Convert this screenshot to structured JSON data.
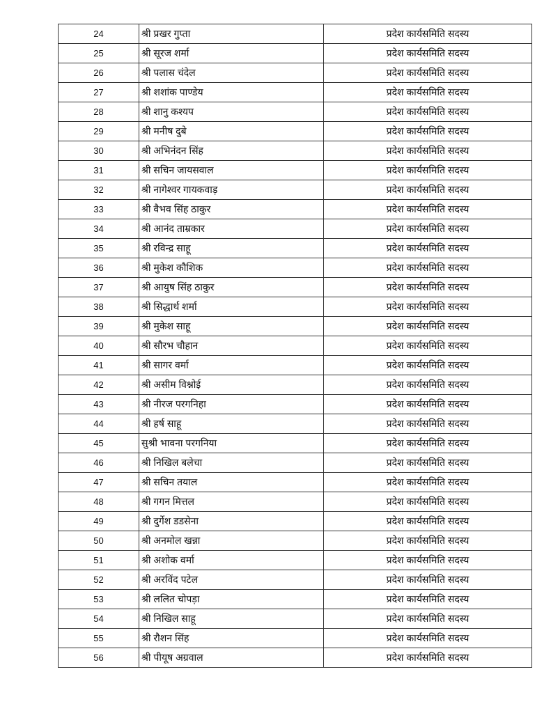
{
  "table": {
    "rows": [
      {
        "sno": "24",
        "name": "श्री प्रखर गुप्ता",
        "designation": "प्रदेश कार्यसमिति सदस्य"
      },
      {
        "sno": "25",
        "name": "श्री सूरज शर्मा",
        "designation": "प्रदेश कार्यसमिति सदस्य"
      },
      {
        "sno": "26",
        "name": "श्री पलास चंदेल",
        "designation": "प्रदेश कार्यसमिति सदस्य"
      },
      {
        "sno": "27",
        "name": "श्री शशांक पाण्डेय",
        "designation": "प्रदेश कार्यसमिति सदस्य"
      },
      {
        "sno": "28",
        "name": "श्री शानु कश्यप",
        "designation": "प्रदेश कार्यसमिति सदस्य"
      },
      {
        "sno": "29",
        "name": "श्री मनीष दुबे",
        "designation": "प्रदेश कार्यसमिति सदस्य"
      },
      {
        "sno": "30",
        "name": "श्री अभिनंदन सिंह",
        "designation": "प्रदेश कार्यसमिति सदस्य"
      },
      {
        "sno": "31",
        "name": "श्री सचिन जायसवाल",
        "designation": "प्रदेश कार्यसमिति सदस्य"
      },
      {
        "sno": "32",
        "name": "श्री नागेश्वर गायकवाड़",
        "designation": "प्रदेश कार्यसमिति सदस्य"
      },
      {
        "sno": "33",
        "name": "श्री वैभव सिंह ठाकुर",
        "designation": "प्रदेश कार्यसमिति सदस्य"
      },
      {
        "sno": "34",
        "name": "श्री आनंद ताम्रकार",
        "designation": "प्रदेश कार्यसमिति सदस्य"
      },
      {
        "sno": "35",
        "name": "श्री रविन्द्र साहू",
        "designation": "प्रदेश कार्यसमिति सदस्य"
      },
      {
        "sno": "36",
        "name": "श्री मुकेश कौशिक",
        "designation": "प्रदेश कार्यसमिति सदस्य"
      },
      {
        "sno": "37",
        "name": "श्री आयुष सिंह ठाकुर",
        "designation": "प्रदेश कार्यसमिति सदस्य"
      },
      {
        "sno": "38",
        "name": "श्री सिद्धार्थ शर्मा",
        "designation": "प्रदेश कार्यसमिति सदस्य"
      },
      {
        "sno": "39",
        "name": "श्री मुकेश साहू",
        "designation": "प्रदेश कार्यसमिति सदस्य"
      },
      {
        "sno": "40",
        "name": "श्री सौरभ चौहान",
        "designation": "प्रदेश कार्यसमिति सदस्य"
      },
      {
        "sno": "41",
        "name": "श्री सागर वर्मा",
        "designation": "प्रदेश कार्यसमिति सदस्य"
      },
      {
        "sno": "42",
        "name": "श्री असीम विश्नोई",
        "designation": "प्रदेश कार्यसमिति सदस्य"
      },
      {
        "sno": "43",
        "name": "श्री नीरज परगनिहा",
        "designation": "प्रदेश कार्यसमिति सदस्य"
      },
      {
        "sno": "44",
        "name": "श्री हर्ष साहू",
        "designation": "प्रदेश कार्यसमिति सदस्य"
      },
      {
        "sno": "45",
        "name": "सुश्री भावना परगनिया",
        "designation": "प्रदेश कार्यसमिति सदस्य"
      },
      {
        "sno": "46",
        "name": "श्री निखिल बलेचा",
        "designation": "प्रदेश कार्यसमिति सदस्य"
      },
      {
        "sno": "47",
        "name": "श्री सचिन तयाल",
        "designation": "प्रदेश कार्यसमिति सदस्य"
      },
      {
        "sno": "48",
        "name": "श्री गगन मित्तल",
        "designation": "प्रदेश कार्यसमिति सदस्य"
      },
      {
        "sno": "49",
        "name": "श्री दुर्गेश डडसेना",
        "designation": "प्रदेश कार्यसमिति सदस्य"
      },
      {
        "sno": "50",
        "name": "श्री अनमोल खन्ना",
        "designation": "प्रदेश कार्यसमिति सदस्य"
      },
      {
        "sno": "51",
        "name": "श्री अशोक वर्मा",
        "designation": "प्रदेश कार्यसमिति सदस्य"
      },
      {
        "sno": "52",
        "name": "श्री अरविंद पटेल",
        "designation": "प्रदेश कार्यसमिति सदस्य"
      },
      {
        "sno": "53",
        "name": "श्री ललित चोपड़ा",
        "designation": "प्रदेश कार्यसमिति सदस्य"
      },
      {
        "sno": "54",
        "name": "श्री निखिल साहू",
        "designation": "प्रदेश कार्यसमिति सदस्य"
      },
      {
        "sno": "55",
        "name": "श्री रौशन सिंह",
        "designation": "प्रदेश कार्यसमिति सदस्य"
      },
      {
        "sno": "56",
        "name": "श्री पीयूष अग्रवाल",
        "designation": "प्रदेश कार्यसमिति सदस्य"
      }
    ]
  }
}
